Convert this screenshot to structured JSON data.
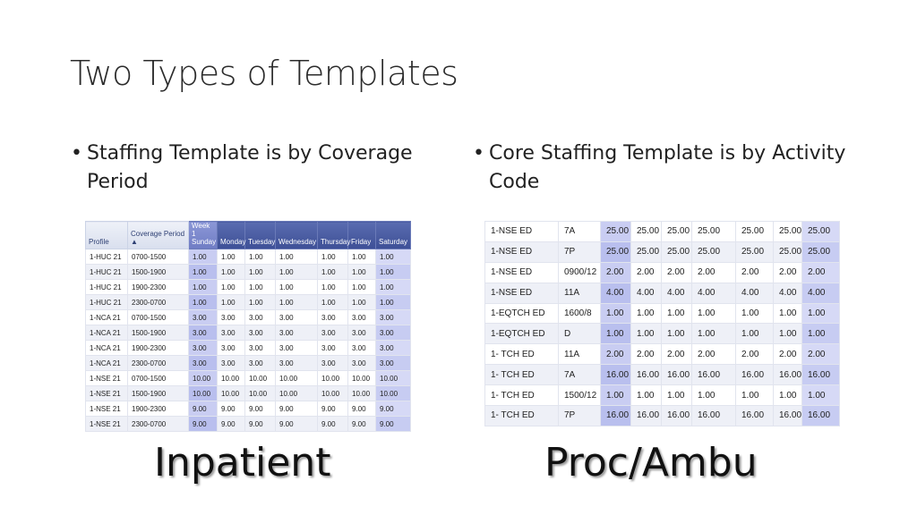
{
  "title": "Two Types of Templates",
  "bullets": {
    "left": "Staffing Template is by Coverage Period",
    "right": "Core Staffing Template is by Activity Code"
  },
  "inpatient_table": {
    "headers": [
      "Profile",
      "Coverage Period ▲",
      "Week 1",
      "Sunday",
      "Monday",
      "Tuesday",
      "Wednesday",
      "Thursday",
      "Friday",
      "Saturday"
    ],
    "rows": [
      [
        "1-HUC 21",
        "0700-1500",
        "1.00",
        "1.00",
        "1.00",
        "1.00",
        "1.00",
        "1.00",
        "1.00"
      ],
      [
        "1-HUC 21",
        "1500-1900",
        "1.00",
        "1.00",
        "1.00",
        "1.00",
        "1.00",
        "1.00",
        "1.00"
      ],
      [
        "1-HUC 21",
        "1900-2300",
        "1.00",
        "1.00",
        "1.00",
        "1.00",
        "1.00",
        "1.00",
        "1.00"
      ],
      [
        "1-HUC 21",
        "2300-0700",
        "1.00",
        "1.00",
        "1.00",
        "1.00",
        "1.00",
        "1.00",
        "1.00"
      ],
      [
        "1-NCA 21",
        "0700-1500",
        "3.00",
        "3.00",
        "3.00",
        "3.00",
        "3.00",
        "3.00",
        "3.00"
      ],
      [
        "1-NCA 21",
        "1500-1900",
        "3.00",
        "3.00",
        "3.00",
        "3.00",
        "3.00",
        "3.00",
        "3.00"
      ],
      [
        "1-NCA 21",
        "1900-2300",
        "3.00",
        "3.00",
        "3.00",
        "3.00",
        "3.00",
        "3.00",
        "3.00"
      ],
      [
        "1-NCA 21",
        "2300-0700",
        "3.00",
        "3.00",
        "3.00",
        "3.00",
        "3.00",
        "3.00",
        "3.00"
      ],
      [
        "1-NSE 21",
        "0700-1500",
        "10.00",
        "10.00",
        "10.00",
        "10.00",
        "10.00",
        "10.00",
        "10.00"
      ],
      [
        "1-NSE 21",
        "1500-1900",
        "10.00",
        "10.00",
        "10.00",
        "10.00",
        "10.00",
        "10.00",
        "10.00"
      ],
      [
        "1-NSE 21",
        "1900-2300",
        "9.00",
        "9.00",
        "9.00",
        "9.00",
        "9.00",
        "9.00",
        "9.00"
      ],
      [
        "1-NSE 21",
        "2300-0700",
        "9.00",
        "9.00",
        "9.00",
        "9.00",
        "9.00",
        "9.00",
        "9.00"
      ]
    ]
  },
  "proc_table": {
    "rows": [
      [
        "1-NSE ED",
        "7A",
        "25.00",
        "25.00",
        "25.00",
        "25.00",
        "25.00",
        "25.00",
        "25.00"
      ],
      [
        "1-NSE ED",
        "7P",
        "25.00",
        "25.00",
        "25.00",
        "25.00",
        "25.00",
        "25.00",
        "25.00"
      ],
      [
        "1-NSE ED",
        "0900/12",
        "2.00",
        "2.00",
        "2.00",
        "2.00",
        "2.00",
        "2.00",
        "2.00"
      ],
      [
        "1-NSE ED",
        "11A",
        "4.00",
        "4.00",
        "4.00",
        "4.00",
        "4.00",
        "4.00",
        "4.00"
      ],
      [
        "1-EQTCH  ED",
        "1600/8",
        "1.00",
        "1.00",
        "1.00",
        "1.00",
        "1.00",
        "1.00",
        "1.00"
      ],
      [
        "1-EQTCH  ED",
        "D",
        "1.00",
        "1.00",
        "1.00",
        "1.00",
        "1.00",
        "1.00",
        "1.00"
      ],
      [
        "1- TCH ED",
        "11A",
        "2.00",
        "2.00",
        "2.00",
        "2.00",
        "2.00",
        "2.00",
        "2.00"
      ],
      [
        "1- TCH ED",
        "7A",
        "16.00",
        "16.00",
        "16.00",
        "16.00",
        "16.00",
        "16.00",
        "16.00"
      ],
      [
        "1- TCH ED",
        "1500/12",
        "1.00",
        "1.00",
        "1.00",
        "1.00",
        "1.00",
        "1.00",
        "1.00"
      ],
      [
        "1- TCH ED",
        "7P",
        "16.00",
        "16.00",
        "16.00",
        "16.00",
        "16.00",
        "16.00",
        "16.00"
      ]
    ]
  },
  "captions": {
    "left": "Inpatient",
    "right": "Proc/Ambu"
  }
}
